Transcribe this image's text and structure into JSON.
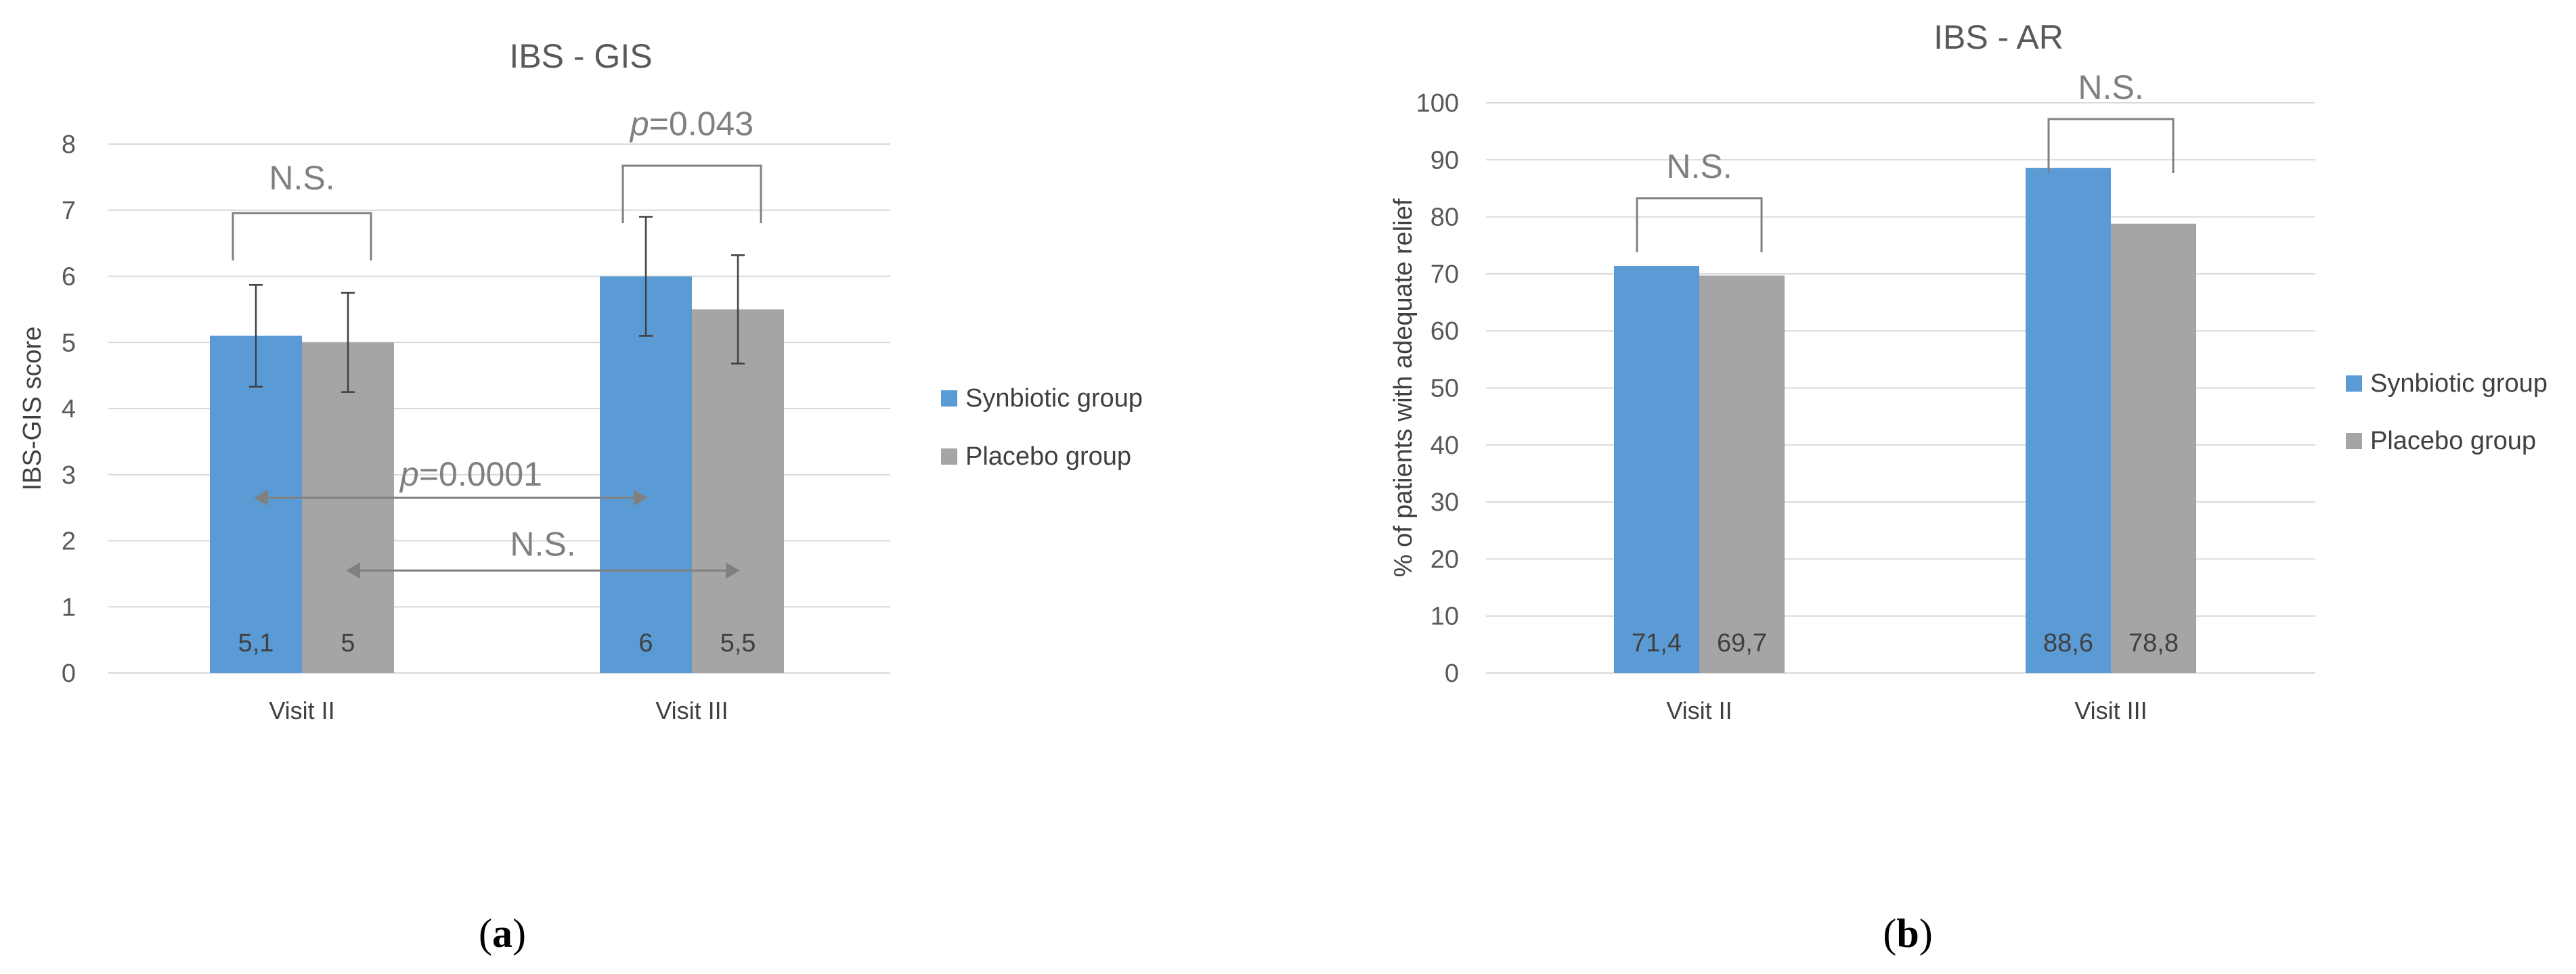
{
  "colors": {
    "synbiotic": "#5b9bd5",
    "placebo": "#a5a5a5"
  },
  "chart_data": [
    {
      "type": "bar",
      "panel_label": "a",
      "title": "IBS - GIS",
      "xlabel": "",
      "ylabel": "IBS-GIS score",
      "ylim": [
        0,
        8
      ],
      "ytick_labels": [
        "0",
        "1",
        "2",
        "3",
        "4",
        "5",
        "6",
        "7",
        "8"
      ],
      "grid": true,
      "legend_position": "right",
      "categories": [
        "Visit II",
        "Visit III"
      ],
      "series": [
        {
          "name": "Synbiotic group",
          "values": [
            5.1,
            6.0
          ],
          "labels": [
            "5,1",
            "6"
          ],
          "error": [
            0.77,
            0.9
          ]
        },
        {
          "name": "Placebo group",
          "values": [
            5.0,
            5.5
          ],
          "labels": [
            "5",
            "5,5"
          ],
          "error": [
            0.75,
            0.82
          ]
        }
      ],
      "annotations": [
        {
          "kind": "bracket",
          "category": 0,
          "text": "N.S."
        },
        {
          "kind": "bracket",
          "category": 1,
          "text_italic": "p",
          "text": "=0.043"
        },
        {
          "kind": "arrow",
          "from": [
            0,
            0
          ],
          "to": [
            1,
            0
          ],
          "y": 2.65,
          "text_italic": "p",
          "text": "=0.0001"
        },
        {
          "kind": "arrow",
          "from": [
            0,
            1
          ],
          "to": [
            1,
            1
          ],
          "y": 1.55,
          "text": "N.S."
        }
      ]
    },
    {
      "type": "bar",
      "panel_label": "b",
      "title": "IBS - AR",
      "xlabel": "",
      "ylabel": "% of patients with adequate relief",
      "ylim": [
        0,
        100
      ],
      "ytick_labels": [
        "0",
        "10",
        "20",
        "30",
        "40",
        "50",
        "60",
        "70",
        "80",
        "90",
        "100"
      ],
      "grid": true,
      "legend_position": "right",
      "categories": [
        "Visit II",
        "Visit III"
      ],
      "series": [
        {
          "name": "Synbiotic group",
          "values": [
            71.4,
            88.6
          ],
          "labels": [
            "71,4",
            "88,6"
          ]
        },
        {
          "name": "Placebo group",
          "values": [
            69.7,
            78.8
          ],
          "labels": [
            "69,7",
            "78,8"
          ]
        }
      ],
      "annotations": [
        {
          "kind": "bracket",
          "category": 0,
          "text": "N.S."
        },
        {
          "kind": "bracket",
          "category": 1,
          "text": "N.S."
        }
      ]
    }
  ]
}
